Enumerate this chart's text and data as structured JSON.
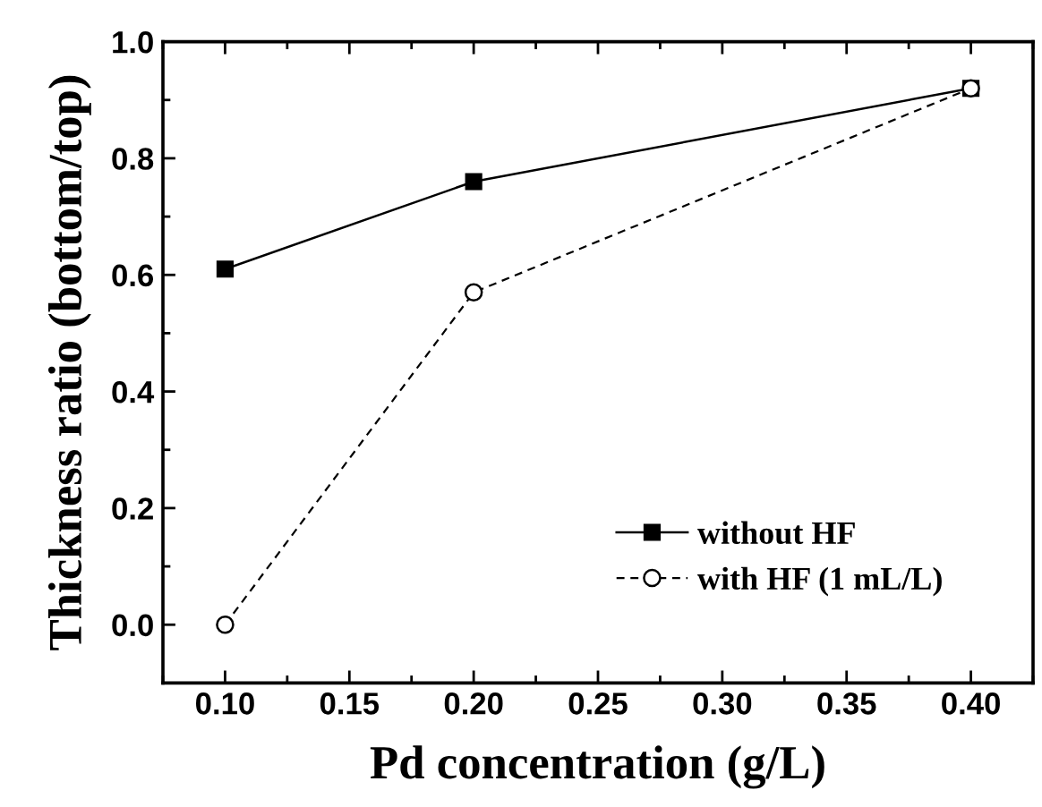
{
  "chart_data": {
    "type": "line",
    "xlabel": "Pd concentration (g/L)",
    "ylabel": "Thickness ratio (bottom/top)",
    "x": [
      0.1,
      0.2,
      0.4
    ],
    "series": [
      {
        "name": "without HF",
        "color": "#000000",
        "values": [
          0.61,
          0.76,
          0.92
        ],
        "marker": "square",
        "line_style": "solid"
      },
      {
        "name": "with HF (1 mL/L)",
        "color": "#000000",
        "values": [
          0.0,
          0.57,
          0.92
        ],
        "marker": "circle",
        "line_style": "dashed"
      }
    ],
    "xlim": [
      0.075,
      0.425
    ],
    "xticks": [
      {
        "value": 0.1,
        "label": "0.10"
      },
      {
        "value": 0.15,
        "label": "0.15"
      },
      {
        "value": 0.2,
        "label": "0.20"
      },
      {
        "value": 0.25,
        "label": "0.25"
      },
      {
        "value": 0.3,
        "label": "0.30"
      },
      {
        "value": 0.35,
        "label": "0.35"
      },
      {
        "value": 0.4,
        "label": "0.40"
      }
    ],
    "ylim": [
      -0.1,
      1.0
    ],
    "yticks": [
      {
        "value": 0.0,
        "label": "0.0"
      },
      {
        "value": 0.2,
        "label": "0.2"
      },
      {
        "value": 0.4,
        "label": "0.4"
      },
      {
        "value": 0.6,
        "label": "0.6"
      },
      {
        "value": 0.8,
        "label": "0.8"
      },
      {
        "value": 1.0,
        "label": "1.0"
      }
    ],
    "grid": false,
    "legend": "bottom right"
  }
}
